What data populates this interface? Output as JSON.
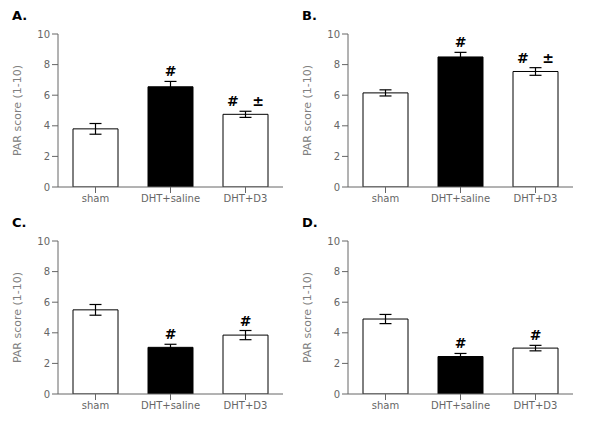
{
  "chart_data": [
    {
      "type": "bar",
      "title": "A.",
      "categories": [
        "sham",
        "DHT+saline",
        "DHT+D3"
      ],
      "values": [
        3.8,
        6.55,
        4.75
      ],
      "errors": [
        0.35,
        0.35,
        0.2
      ],
      "colors": [
        "white",
        "black",
        "white"
      ],
      "ylabel": "PAR score (1-10)",
      "ylim": [
        0,
        10
      ],
      "yticks": [
        0,
        2,
        4,
        6,
        8,
        10
      ],
      "annotations": [
        {
          "text": "#",
          "category": "DHT+saline"
        },
        {
          "text": "#",
          "category": "DHT+D3"
        },
        {
          "text": "±",
          "category": "DHT+D3"
        }
      ]
    },
    {
      "type": "bar",
      "title": "B.",
      "categories": [
        "sham",
        "DHT+saline",
        "DHT+D3"
      ],
      "values": [
        6.15,
        8.5,
        7.55
      ],
      "errors": [
        0.2,
        0.3,
        0.25
      ],
      "colors": [
        "white",
        "black",
        "white"
      ],
      "ylabel": "PAR score (1-10)",
      "ylim": [
        0,
        10
      ],
      "yticks": [
        0,
        2,
        4,
        6,
        8,
        10
      ],
      "annotations": [
        {
          "text": "#",
          "category": "DHT+saline"
        },
        {
          "text": "#",
          "category": "DHT+D3"
        },
        {
          "text": "±",
          "category": "DHT+D3"
        }
      ]
    },
    {
      "type": "bar",
      "title": "C.",
      "categories": [
        "sham",
        "DHT+saline",
        "DHT+D3"
      ],
      "values": [
        5.5,
        3.05,
        3.85
      ],
      "errors": [
        0.35,
        0.2,
        0.3
      ],
      "colors": [
        "white",
        "black",
        "white"
      ],
      "ylabel": "PAR score (1-10)",
      "ylim": [
        0,
        10
      ],
      "yticks": [
        0,
        2,
        4,
        6,
        8,
        10
      ],
      "annotations": [
        {
          "text": "#",
          "category": "DHT+saline"
        },
        {
          "text": "#",
          "category": "DHT+D3"
        }
      ]
    },
    {
      "type": "bar",
      "title": "D.",
      "categories": [
        "sham",
        "DHT+saline",
        "DHT+D3"
      ],
      "values": [
        4.9,
        2.45,
        3.0
      ],
      "errors": [
        0.3,
        0.2,
        0.18
      ],
      "colors": [
        "white",
        "black",
        "white"
      ],
      "ylabel": "PAR score (1-10)",
      "ylim": [
        0,
        10
      ],
      "yticks": [
        0,
        2,
        4,
        6,
        8,
        10
      ],
      "annotations": [
        {
          "text": "#",
          "category": "DHT+saline"
        },
        {
          "text": "#",
          "category": "DHT+D3"
        }
      ]
    }
  ]
}
